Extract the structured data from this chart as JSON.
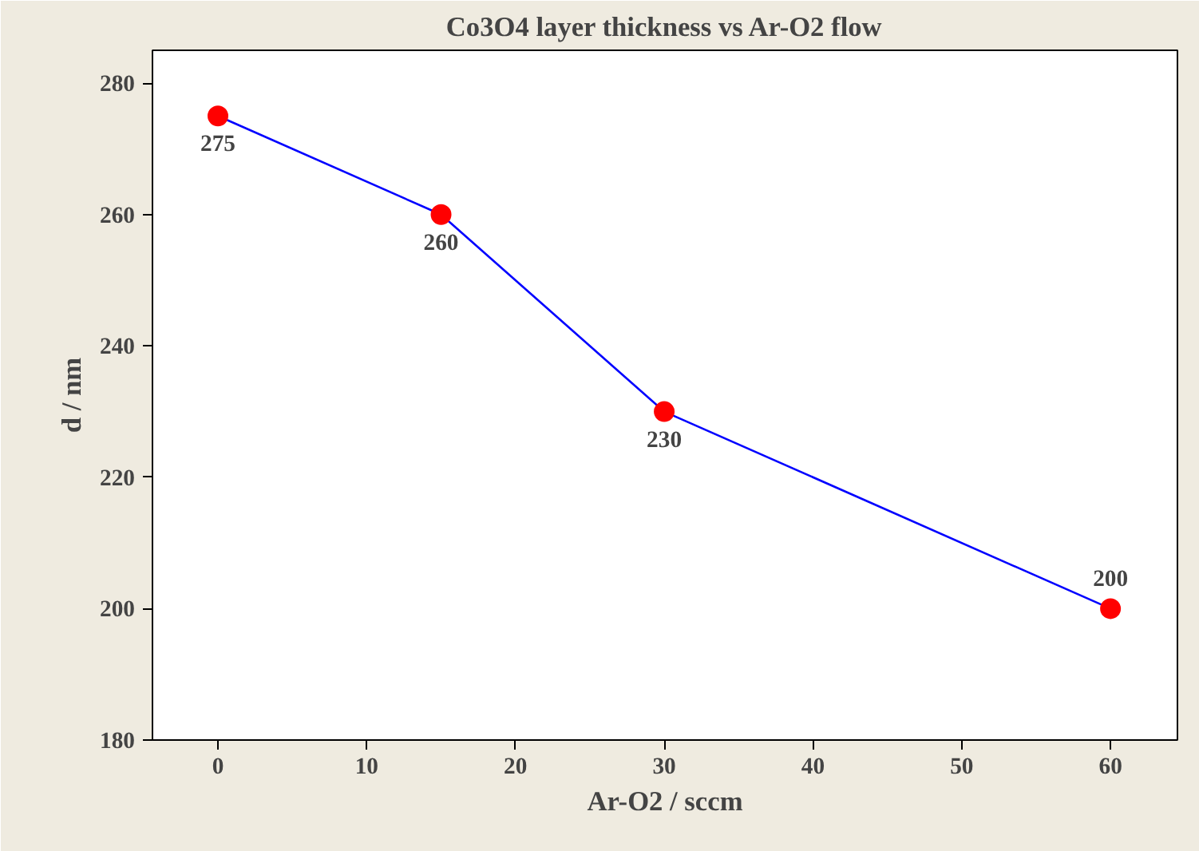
{
  "chart_data": {
    "type": "line",
    "title": "Co3O4 layer thickness vs Ar-O2 flow",
    "xlabel": "Ar-O2 / sccm",
    "ylabel": "d / nm",
    "x": [
      0,
      15,
      30,
      60
    ],
    "series": [
      {
        "color": "#0000ff",
        "colors": [
          "#ff0000",
          "#ff0000",
          "#ff0000",
          "#ff0000"
        ],
        "values": [
          275,
          260,
          230,
          200
        ]
      }
    ],
    "marker": "circle",
    "data_labels": true,
    "xlim": [
      -4.4,
      64.5
    ],
    "ylim": [
      180,
      285
    ],
    "xticks": [
      0,
      10,
      20,
      30,
      40,
      50,
      60
    ],
    "yticks": [
      180,
      200,
      220,
      240,
      260,
      280
    ],
    "grid": false
  }
}
